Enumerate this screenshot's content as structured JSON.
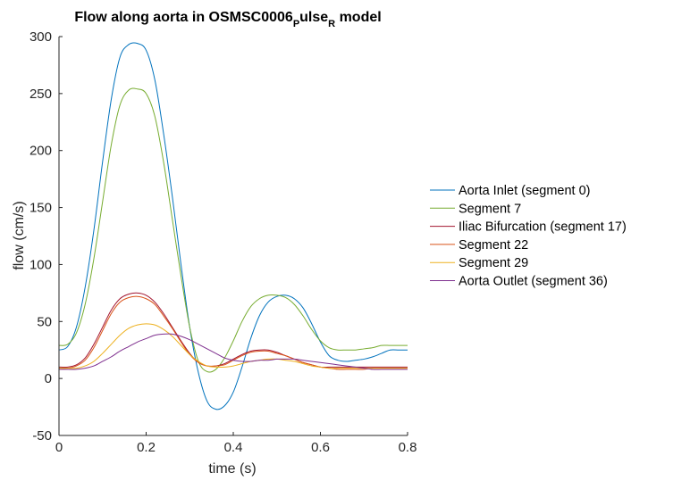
{
  "chart_data": {
    "type": "line",
    "title": {
      "prefix": "Flow along aorta in OSMSC0006",
      "sub1": "P",
      "mid": "ulse",
      "sub2": "R",
      "suffix": " model"
    },
    "xlabel": "time (s)",
    "ylabel": "flow (cm/s)",
    "xlim": [
      0,
      0.8
    ],
    "ylim": [
      -50,
      300
    ],
    "xticks": [
      0,
      0.2,
      0.4,
      0.6,
      0.8
    ],
    "xtick_labels": [
      "0",
      "0.2",
      "0.4",
      "0.6",
      "0.8"
    ],
    "yticks": [
      -50,
      0,
      50,
      100,
      150,
      200,
      250,
      300
    ],
    "ytick_labels": [
      "-50",
      "0",
      "50",
      "100",
      "150",
      "200",
      "250",
      "300"
    ],
    "grid": false,
    "legend_position": "outside-right",
    "x": [
      0,
      0.02,
      0.04,
      0.06,
      0.08,
      0.1,
      0.12,
      0.14,
      0.16,
      0.18,
      0.2,
      0.22,
      0.24,
      0.26,
      0.28,
      0.3,
      0.32,
      0.34,
      0.36,
      0.38,
      0.4,
      0.42,
      0.44,
      0.46,
      0.48,
      0.5,
      0.52,
      0.54,
      0.56,
      0.58,
      0.6,
      0.62,
      0.64,
      0.66,
      0.68,
      0.7,
      0.72,
      0.74,
      0.76,
      0.78,
      0.8
    ],
    "series": [
      {
        "name": "Aorta Inlet (segment 0)",
        "color": "#0072BD",
        "values": [
          25,
          28,
          45,
          80,
          130,
          190,
          245,
          282,
          293,
          294,
          288,
          262,
          215,
          160,
          100,
          45,
          5,
          -20,
          -27,
          -24,
          -12,
          10,
          35,
          55,
          67,
          72,
          73,
          70,
          62,
          48,
          32,
          20,
          16,
          15,
          16,
          17,
          19,
          22,
          25,
          25,
          25
        ]
      },
      {
        "name": "Segment 7",
        "color": "#77AC30",
        "values": [
          29,
          30,
          40,
          65,
          105,
          155,
          205,
          240,
          253,
          254,
          250,
          230,
          190,
          140,
          90,
          45,
          15,
          6,
          8,
          18,
          33,
          50,
          63,
          70,
          73,
          73,
          71,
          65,
          55,
          43,
          33,
          27,
          25,
          25,
          25,
          26,
          27,
          29,
          29,
          29,
          29
        ]
      },
      {
        "name": "Iliac Bifurcation (segment 17)",
        "color": "#A2142F",
        "values": [
          10,
          10,
          12,
          18,
          30,
          45,
          60,
          70,
          74,
          75,
          73,
          67,
          57,
          45,
          33,
          22,
          14,
          11,
          11,
          13,
          17,
          21,
          24,
          25,
          25,
          23,
          20,
          17,
          14,
          12,
          10,
          10,
          10,
          10,
          10,
          10,
          10,
          10,
          10,
          10,
          10
        ]
      },
      {
        "name": "Segment 22",
        "color": "#D95319",
        "values": [
          9,
          9,
          11,
          16,
          27,
          42,
          57,
          67,
          71,
          72,
          70,
          65,
          55,
          44,
          32,
          21,
          14,
          11,
          11,
          12,
          16,
          20,
          23,
          24,
          24,
          22,
          20,
          17,
          14,
          12,
          10,
          9,
          8,
          8,
          8,
          8,
          9,
          9,
          9,
          9,
          9
        ]
      },
      {
        "name": "Segment 29",
        "color": "#EDB120",
        "values": [
          9,
          9,
          9,
          11,
          15,
          22,
          30,
          38,
          44,
          47,
          48,
          47,
          43,
          37,
          29,
          21,
          15,
          11,
          10,
          10,
          11,
          13,
          15,
          16,
          17,
          17,
          16,
          15,
          13,
          11,
          10,
          9,
          9,
          9,
          9,
          9,
          9,
          9,
          9,
          9,
          9
        ]
      },
      {
        "name": "Aorta Outlet (segment 36)",
        "color": "#7E2F8E",
        "values": [
          8,
          8,
          8,
          9,
          11,
          15,
          19,
          24,
          28,
          32,
          35,
          38,
          39,
          39,
          37,
          34,
          30,
          26,
          22,
          18,
          16,
          15,
          15,
          16,
          16,
          17,
          17,
          17,
          16,
          15,
          14,
          13,
          12,
          11,
          10,
          9,
          8,
          8,
          8,
          8,
          8
        ]
      }
    ]
  }
}
